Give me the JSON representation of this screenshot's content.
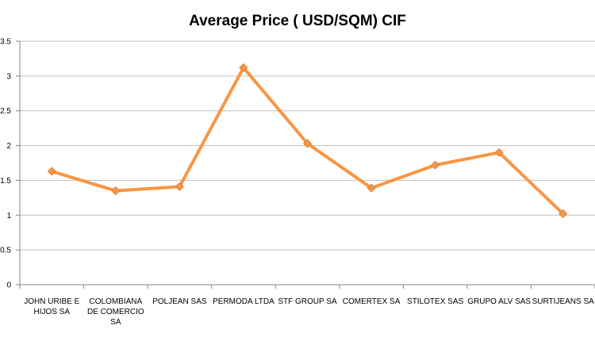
{
  "chart_data": {
    "type": "line",
    "title": "Average Price ( USD/SQM) CIF",
    "xlabel": "",
    "ylabel": "",
    "ylim": [
      0,
      3.5
    ],
    "y_ticks": [
      "0",
      "0.5",
      "1",
      "1.5",
      "2",
      "2.5",
      "3",
      "3.5"
    ],
    "y_tick_values": [
      0,
      0.5,
      1,
      1.5,
      2,
      2.5,
      3,
      3.5
    ],
    "grid": true,
    "legend": "none",
    "categories": [
      [
        "JOHN URIBE E",
        "HIJOS SA"
      ],
      [
        "COLOMBIANA",
        "DE COMERCIO",
        "SA"
      ],
      [
        "POLJEAN SAS"
      ],
      [
        "PERMODA LTDA"
      ],
      [
        "STF GROUP SA"
      ],
      [
        "COMERTEX SA"
      ],
      [
        "STILOTEX SAS"
      ],
      [
        "GRUPO ALV SAS"
      ],
      [
        "SURTIJEANS SA"
      ]
    ],
    "series": [
      {
        "values": [
          1.63,
          1.35,
          1.41,
          3.12,
          2.03,
          1.39,
          1.72,
          1.9,
          1.02
        ],
        "color": "#F79646"
      }
    ]
  }
}
